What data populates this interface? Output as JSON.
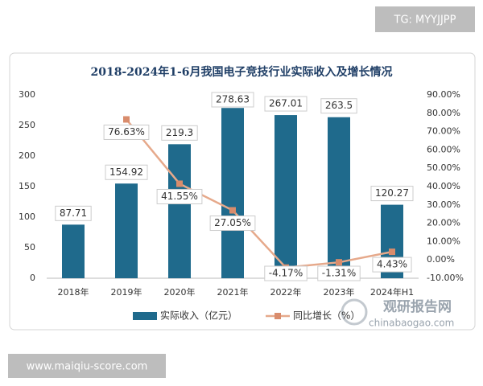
{
  "watermark_top": "TG: MYYJJPP",
  "watermark_bottom": "www.maiqiu-score.com",
  "logo": {
    "name": "观研报告网",
    "url": "chinabaogao.com"
  },
  "chart_data": {
    "type": "bar",
    "title": "2018-2024年1-6月我国电子竞技行业实际收入及增长情况",
    "categories": [
      "2018年",
      "2019年",
      "2020年",
      "2021年",
      "2022年",
      "2023年",
      "2024年H1"
    ],
    "series": [
      {
        "name": "实际收入（亿元）",
        "type": "bar",
        "color": "#1f6a8c",
        "values": [
          87.71,
          154.92,
          219.3,
          278.63,
          267.01,
          263.5,
          120.27
        ]
      },
      {
        "name": "同比增长（%）",
        "type": "line",
        "axis": "y2",
        "color": "#e6a98b",
        "values": [
          null,
          76.63,
          41.55,
          27.05,
          -4.17,
          -1.31,
          4.43
        ],
        "value_labels": [
          null,
          "76.63%",
          "41.55%",
          "27.05%",
          "-4.17%",
          "-1.31%",
          "4.43%"
        ]
      }
    ],
    "ylim": [
      0,
      300
    ],
    "yticks": [
      0,
      50,
      100,
      150,
      200,
      250,
      300
    ],
    "y2lim": [
      -10,
      90
    ],
    "y2ticks": [
      {
        "value": -10,
        "label": "-10.00%"
      },
      {
        "value": 0,
        "label": "0.00%"
      },
      {
        "value": 10,
        "label": "10.00%"
      },
      {
        "value": 20,
        "label": "20.00%"
      },
      {
        "value": 30,
        "label": "30.00%"
      },
      {
        "value": 40,
        "label": "40.00%"
      },
      {
        "value": 50,
        "label": "50.00%"
      },
      {
        "value": 60,
        "label": "60.00%"
      },
      {
        "value": 70,
        "label": "70.00%"
      },
      {
        "value": 80,
        "label": "80.00%"
      },
      {
        "value": 90,
        "label": "90.00%"
      }
    ],
    "grid": false
  }
}
